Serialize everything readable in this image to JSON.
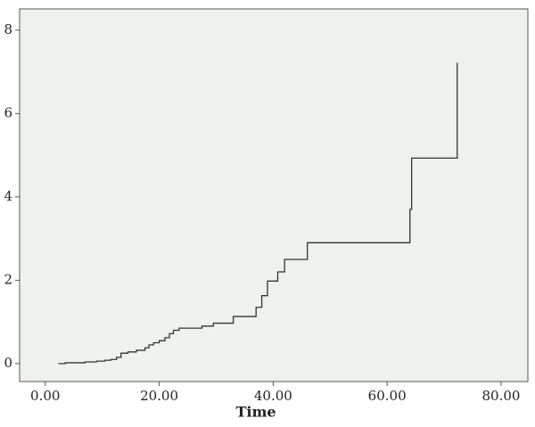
{
  "chart_data": {
    "type": "line",
    "step": "post",
    "x_label": "Time",
    "color": "#333333",
    "x": [
      2.3,
      3.5,
      7,
      9,
      10.5,
      11.5,
      12.5,
      13.3,
      14.5,
      16,
      17.5,
      18.2,
      19,
      20,
      21,
      21.8,
      22.5,
      23.5,
      27.5,
      29.5,
      33,
      37,
      38,
      39,
      40.8,
      42,
      46,
      64,
      64.3,
      72.3
    ],
    "values": [
      0,
      0.02,
      0.04,
      0.06,
      0.08,
      0.1,
      0.15,
      0.25,
      0.28,
      0.32,
      0.38,
      0.45,
      0.5,
      0.55,
      0.62,
      0.72,
      0.8,
      0.85,
      0.9,
      0.97,
      1.13,
      1.35,
      1.63,
      1.98,
      2.2,
      2.5,
      2.9,
      3.7,
      4.93,
      7.22
    ],
    "xlim": [
      -4.5,
      84.7
    ],
    "ylim": [
      -0.43,
      8.51
    ],
    "xticks": [
      {
        "value": 0,
        "label": "0.00"
      },
      {
        "value": 20,
        "label": "20.00"
      },
      {
        "value": 40,
        "label": "40.00"
      },
      {
        "value": 60,
        "label": "60.00"
      },
      {
        "value": 80,
        "label": "80.00"
      }
    ],
    "yticks": [
      0,
      2,
      4,
      6,
      8
    ]
  }
}
